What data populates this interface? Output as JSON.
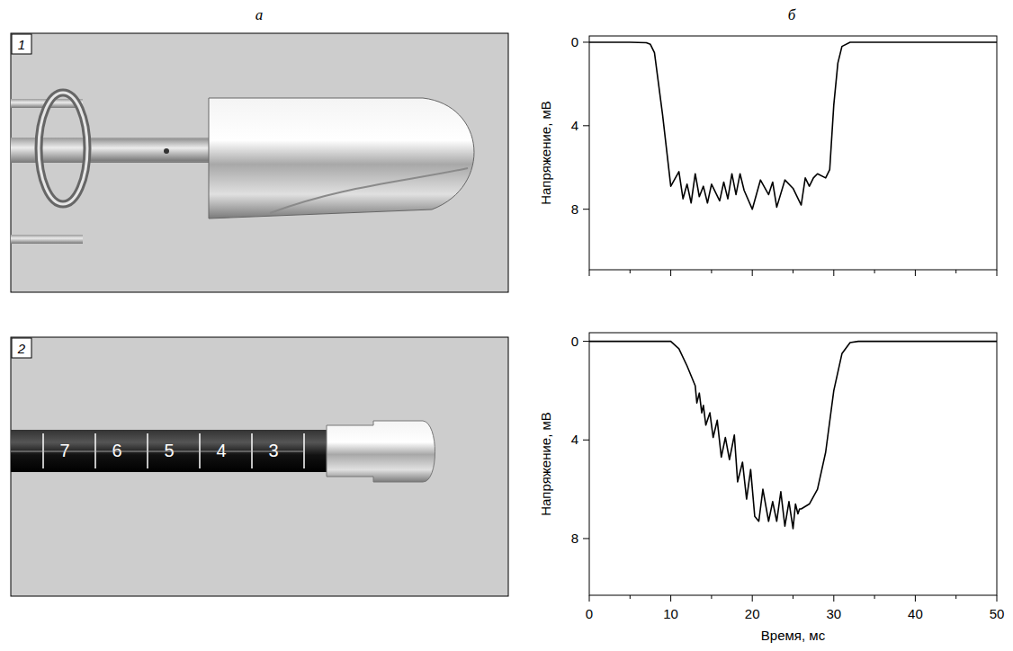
{
  "panel_labels": {
    "left": "а",
    "right": "б"
  },
  "photos": [
    {
      "label": "1"
    },
    {
      "label": "2",
      "scale_labels": [
        "7",
        "6",
        "5",
        "4",
        "3"
      ]
    }
  ],
  "chart_data": [
    {
      "type": "line",
      "y_label": "Напряжение, мВ",
      "color": "#000000",
      "x": [
        0,
        5,
        7,
        7.5,
        8,
        9,
        10,
        11,
        11.5,
        12,
        12.5,
        13,
        13.5,
        14,
        14.5,
        15,
        16,
        16.5,
        17,
        17.5,
        18,
        18.5,
        19,
        20,
        21,
        22,
        22.5,
        23,
        24,
        25,
        26,
        26.5,
        27,
        27.5,
        28,
        29,
        29.5,
        30,
        30.5,
        31,
        32,
        50
      ],
      "values": [
        0,
        0,
        0.02,
        0.1,
        0.5,
        3.5,
        6.9,
        6.2,
        7.5,
        6.8,
        7.7,
        6.3,
        7.4,
        6.9,
        7.7,
        6.8,
        7.6,
        6.7,
        7.5,
        6.3,
        7.3,
        6.3,
        7.1,
        8.0,
        6.6,
        7.3,
        6.7,
        7.9,
        6.6,
        7.0,
        7.8,
        6.5,
        6.9,
        6.5,
        6.3,
        6.5,
        6.1,
        3.0,
        1.0,
        0.2,
        0,
        0
      ],
      "xlim": [
        0,
        50
      ],
      "ylim": [
        10.9,
        -0.3
      ],
      "xticks": [
        0,
        10,
        20,
        30,
        40,
        50
      ],
      "yticks": [
        0,
        4,
        8
      ],
      "tick_labels": "y",
      "grid": false
    },
    {
      "type": "line",
      "x_label": "Время, мс",
      "y_label": "Напряжение, мВ",
      "color": "#000000",
      "x": [
        0,
        10,
        11,
        12,
        13,
        13.2,
        13.5,
        13.8,
        14,
        14.3,
        14.8,
        15.2,
        15.7,
        16.2,
        16.7,
        17.2,
        17.8,
        18.2,
        18.8,
        19.3,
        19.8,
        20.3,
        20.8,
        21.3,
        22,
        22.5,
        23,
        23.5,
        24,
        24.5,
        25,
        25.3,
        25.6,
        25.8,
        26,
        27,
        28,
        29,
        30,
        31,
        32,
        33,
        50
      ],
      "values": [
        0,
        0,
        0.3,
        1.0,
        1.8,
        2.5,
        2.1,
        2.9,
        2.6,
        3.4,
        2.9,
        3.9,
        3.2,
        4.7,
        3.9,
        4.8,
        3.8,
        5.7,
        4.9,
        6.4,
        5.2,
        7.1,
        7.3,
        6.0,
        7.3,
        6.5,
        7.3,
        6.1,
        7.5,
        6.5,
        7.6,
        6.6,
        7.0,
        6.8,
        6.8,
        6.6,
        6.0,
        4.5,
        2.0,
        0.5,
        0.05,
        0,
        0
      ],
      "xlim": [
        0,
        50
      ],
      "ylim": [
        10.3,
        -0.35
      ],
      "xticks": [
        0,
        10,
        20,
        30,
        40,
        50
      ],
      "yticks": [
        0,
        4,
        8
      ],
      "grid": false
    }
  ]
}
